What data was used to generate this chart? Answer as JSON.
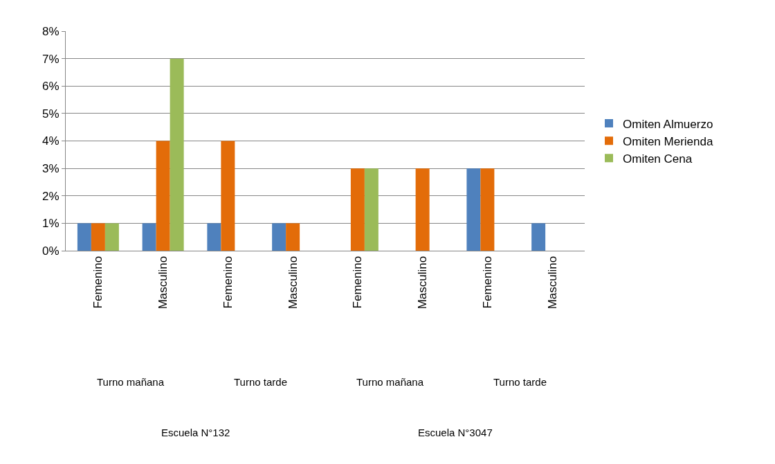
{
  "chart_data": {
    "type": "bar",
    "categories": [
      "Femenino",
      "Masculino",
      "Femenino",
      "Masculino",
      "Femenino",
      "Masculino",
      "Femenino",
      "Masculino"
    ],
    "annotations": [
      "Turno mañana",
      "Turno tarde",
      "Turno mañana",
      "Turno tarde",
      "Escuela N°132",
      "Escuela N°3047"
    ],
    "series": [
      {
        "name": "Omiten Almuerzo",
        "color": "#4f81bd",
        "values": [
          1,
          1,
          1,
          1,
          0,
          0,
          3,
          1
        ]
      },
      {
        "name": "Omiten Merienda",
        "color": "#e36c09",
        "values": [
          1,
          4,
          4,
          1,
          3,
          3,
          3,
          0
        ]
      },
      {
        "name": "Omiten Cena",
        "color": "#9bbb59",
        "values": [
          1,
          7,
          0,
          0,
          3,
          0,
          0,
          0
        ]
      }
    ],
    "ylim": [
      0,
      8
    ],
    "yticks": [
      {
        "value": 0,
        "label": "0%"
      },
      {
        "value": 1,
        "label": "1%"
      },
      {
        "value": 2,
        "label": "2%"
      },
      {
        "value": 3,
        "label": "3%"
      },
      {
        "value": 4,
        "label": "4%"
      },
      {
        "value": 5,
        "label": "5%"
      },
      {
        "value": 6,
        "label": "6%"
      },
      {
        "value": 7,
        "label": "7%"
      },
      {
        "value": 8,
        "label": "8%"
      }
    ],
    "grid": "y",
    "legend": "right"
  }
}
